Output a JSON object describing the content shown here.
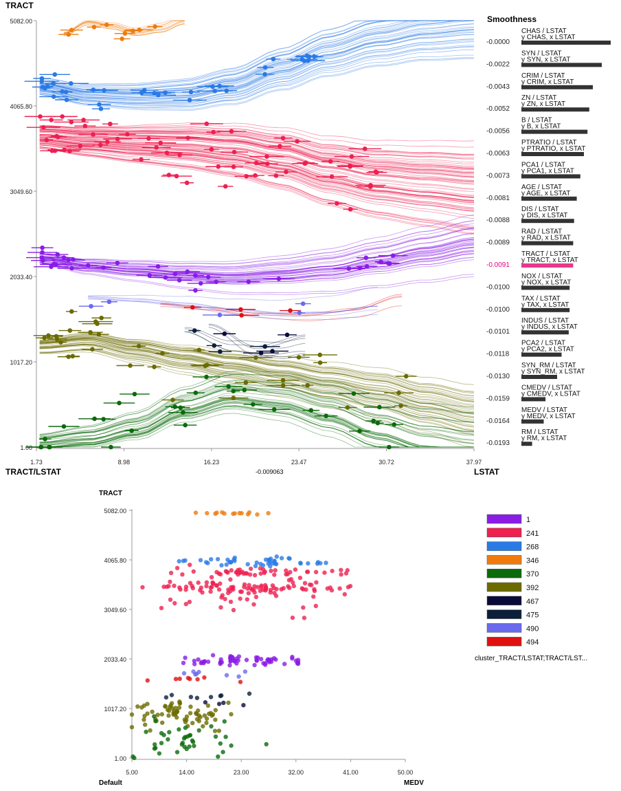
{
  "top": {
    "y_axis_title": "TRACT",
    "x_corner_left": "TRACT/LSTAT",
    "x_corner_right": "LSTAT",
    "x_center_value": "-0.009063",
    "y_ticks": [
      "5082.00",
      "4065.80",
      "3049.60",
      "2033.40",
      "1017.20",
      "1.00"
    ],
    "x_ticks": [
      "1.73",
      "8.98",
      "16.23",
      "23.47",
      "30.72",
      "37.97"
    ],
    "y_values": [
      5082,
      4065.8,
      3049.6,
      2033.4,
      1017.2,
      1
    ],
    "x_values": [
      1.73,
      8.98,
      16.23,
      23.47,
      30.72,
      37.97
    ]
  },
  "smoothness": {
    "title": "Smoothness",
    "highlight_color": "#e6007e",
    "items": [
      {
        "value": "-0.0000",
        "label1": "CHAS / LSTAT",
        "label2": "y CHAS, x LSTAT",
        "bar": 1.0,
        "highlight": false
      },
      {
        "value": "-0.0022",
        "label1": "SYN / LSTAT",
        "label2": "y SYN, x LSTAT",
        "bar": 0.9,
        "highlight": false
      },
      {
        "value": "-0.0043",
        "label1": "CRIM / LSTAT",
        "label2": "y CRIM, x LSTAT",
        "bar": 0.8,
        "highlight": false
      },
      {
        "value": "-0.0052",
        "label1": "ZN / LSTAT",
        "label2": "y ZN, x LSTAT",
        "bar": 0.76,
        "highlight": false
      },
      {
        "value": "-0.0056",
        "label1": "B / LSTAT",
        "label2": "y B, x LSTAT",
        "bar": 0.74,
        "highlight": false
      },
      {
        "value": "-0.0063",
        "label1": "PTRATIO / LSTAT",
        "label2": "y PTRATIO, x LSTAT",
        "bar": 0.7,
        "highlight": false
      },
      {
        "value": "-0.0073",
        "label1": "PCA1 / LSTAT",
        "label2": "y PCA1, x LSTAT",
        "bar": 0.66,
        "highlight": false
      },
      {
        "value": "-0.0081",
        "label1": "AGE / LSTAT",
        "label2": "y AGE, x LSTAT",
        "bar": 0.62,
        "highlight": false
      },
      {
        "value": "-0.0088",
        "label1": "DIS / LSTAT",
        "label2": "y DIS, x LSTAT",
        "bar": 0.59,
        "highlight": false
      },
      {
        "value": "-0.0089",
        "label1": "RAD / LSTAT",
        "label2": "y RAD, x LSTAT",
        "bar": 0.58,
        "highlight": false
      },
      {
        "value": "-0.0091",
        "label1": "TRACT / LSTAT",
        "label2": "y TRACT, x LSTAT",
        "bar": 0.58,
        "highlight": true
      },
      {
        "value": "-0.0100",
        "label1": "NOX / LSTAT",
        "label2": "y NOX, x LSTAT",
        "bar": 0.54,
        "highlight": false
      },
      {
        "value": "-0.0100",
        "label1": "TAX / LSTAT",
        "label2": "y TAX, x LSTAT",
        "bar": 0.54,
        "highlight": false
      },
      {
        "value": "-0.0101",
        "label1": "INDUS / LSTAT",
        "label2": "y INDUS, x LSTAT",
        "bar": 0.53,
        "highlight": false
      },
      {
        "value": "-0.0118",
        "label1": "PCA2 / LSTAT",
        "label2": "y PCA2, x LSTAT",
        "bar": 0.45,
        "highlight": false
      },
      {
        "value": "-0.0130",
        "label1": "SYN_RM / LSTAT",
        "label2": "y SYN_RM, x LSTAT",
        "bar": 0.4,
        "highlight": false
      },
      {
        "value": "-0.0159",
        "label1": "CMEDV / LSTAT",
        "label2": "y CMEDV, x LSTAT",
        "bar": 0.27,
        "highlight": false
      },
      {
        "value": "-0.0164",
        "label1": "MEDV / LSTAT",
        "label2": "y MEDV, x LSTAT",
        "bar": 0.25,
        "highlight": false
      },
      {
        "value": "-0.0193",
        "label1": "RM / LSTAT",
        "label2": "y RM, x LSTAT",
        "bar": 0.12,
        "highlight": false
      }
    ]
  },
  "bottom": {
    "y_axis_title": "TRACT",
    "x_corner_left": "Default",
    "x_corner_right": "MEDV",
    "y_ticks": [
      "5082.00",
      "4065.80",
      "3049.60",
      "2033.40",
      "1017.20",
      "1.00"
    ],
    "x_ticks": [
      "5.00",
      "14.00",
      "23.00",
      "32.00",
      "41.00",
      "50.00"
    ],
    "y_values": [
      5082,
      4065.8,
      3049.6,
      2033.4,
      1017.2,
      1
    ],
    "x_values": [
      5,
      14,
      23,
      32,
      41,
      50
    ]
  },
  "legend": {
    "title": "cluster_TRACT/LSTAT;TRACT/LST...",
    "items": [
      {
        "label": "1",
        "color": "#8a1ce6"
      },
      {
        "label": "241",
        "color": "#ee2050"
      },
      {
        "label": "268",
        "color": "#2a7ae6"
      },
      {
        "label": "346",
        "color": "#f07b0c"
      },
      {
        "label": "370",
        "color": "#0b6a0b"
      },
      {
        "label": "392",
        "color": "#6b6b00"
      },
      {
        "label": "467",
        "color": "#0a0a3a"
      },
      {
        "label": "475",
        "color": "#0b1f3a"
      },
      {
        "label": "490",
        "color": "#6a6aee"
      },
      {
        "label": "494",
        "color": "#e01010"
      }
    ]
  },
  "chart_data": [
    {
      "type": "line",
      "title": "",
      "xlabel": "LSTAT",
      "ylabel": "TRACT",
      "xlim": [
        1.73,
        37.97
      ],
      "ylim": [
        1,
        5082
      ],
      "series": [
        {
          "name": "346",
          "color": "#f07b0c",
          "x": [
            4,
            6,
            8,
            10,
            12,
            14
          ],
          "y": [
            4920,
            5050,
            5000,
            4920,
            4960,
            5060
          ]
        },
        {
          "name": "268",
          "color": "#2a7ae6",
          "x": [
            2,
            6,
            10,
            14,
            18,
            22,
            26,
            30,
            34,
            37.97
          ],
          "y": [
            4300,
            4200,
            4180,
            4200,
            4300,
            4500,
            4700,
            4850,
            4950,
            5000
          ]
        },
        {
          "name": "241",
          "color": "#ee2050",
          "x": [
            2,
            6,
            10,
            14,
            18,
            22,
            26,
            30,
            34,
            37.97
          ],
          "y": [
            3700,
            3650,
            3620,
            3600,
            3550,
            3450,
            3300,
            3200,
            3150,
            3100
          ]
        },
        {
          "name": "1",
          "color": "#8a1ce6",
          "x": [
            2,
            6,
            10,
            14,
            18,
            22,
            26,
            30,
            34,
            37.97
          ],
          "y": [
            2250,
            2150,
            2100,
            2050,
            2020,
            2050,
            2100,
            2200,
            2300,
            2400
          ]
        },
        {
          "name": "494",
          "color": "#e01010",
          "x": [
            12,
            16,
            20,
            24,
            28,
            32
          ],
          "y": [
            1700,
            1650,
            1580,
            1560,
            1620,
            1780
          ]
        },
        {
          "name": "490",
          "color": "#6a6aee",
          "x": [
            6,
            10,
            14,
            18,
            22,
            26,
            30
          ],
          "y": [
            1780,
            1760,
            1720,
            1660,
            1620,
            1640,
            1720
          ]
        },
        {
          "name": "475",
          "color": "#0b1f3a",
          "x": [
            14,
            18,
            22,
            24
          ],
          "y": [
            1400,
            1200,
            1150,
            1200
          ]
        },
        {
          "name": "467",
          "color": "#0a0a3a",
          "x": [
            16,
            20,
            24
          ],
          "y": [
            1450,
            1150,
            1250
          ]
        },
        {
          "name": "392",
          "color": "#6b6b00",
          "x": [
            2,
            6,
            10,
            14,
            18,
            22,
            26,
            30,
            34,
            37.97
          ],
          "y": [
            1200,
            1250,
            1150,
            1050,
            950,
            850,
            750,
            650,
            500,
            380
          ]
        },
        {
          "name": "370",
          "color": "#0b6a0b",
          "x": [
            2,
            6,
            10,
            14,
            18,
            22,
            26,
            30,
            34,
            37.97
          ],
          "y": [
            60,
            120,
            250,
            500,
            650,
            600,
            450,
            250,
            100,
            20
          ]
        }
      ]
    },
    {
      "type": "bar",
      "title": "Smoothness",
      "orientation": "horizontal",
      "categories": [
        "CHAS / LSTAT",
        "SYN / LSTAT",
        "CRIM / LSTAT",
        "ZN / LSTAT",
        "B / LSTAT",
        "PTRATIO / LSTAT",
        "PCA1 / LSTAT",
        "AGE / LSTAT",
        "DIS / LSTAT",
        "RAD / LSTAT",
        "TRACT / LSTAT",
        "NOX / LSTAT",
        "TAX / LSTAT",
        "INDUS / LSTAT",
        "PCA2 / LSTAT",
        "SYN_RM / LSTAT",
        "CMEDV / LSTAT",
        "MEDV / LSTAT",
        "RM / LSTAT"
      ],
      "values": [
        -0.0,
        -0.0022,
        -0.0043,
        -0.0052,
        -0.0056,
        -0.0063,
        -0.0073,
        -0.0081,
        -0.0088,
        -0.0089,
        -0.0091,
        -0.01,
        -0.01,
        -0.0101,
        -0.0118,
        -0.013,
        -0.0159,
        -0.0164,
        -0.0193
      ]
    },
    {
      "type": "scatter",
      "title": "",
      "xlabel": "MEDV",
      "ylabel": "TRACT",
      "xlim": [
        5,
        50
      ],
      "ylim": [
        1,
        5082
      ],
      "series": [
        {
          "name": "346",
          "color": "#f07b0c",
          "center": [
            22,
            5020
          ],
          "spread": [
            5,
            30
          ],
          "n": 14
        },
        {
          "name": "268",
          "color": "#2a7ae6",
          "center": [
            26,
            4020
          ],
          "spread": [
            10,
            80
          ],
          "n": 45
        },
        {
          "name": "241",
          "color": "#ee2050",
          "center": [
            24,
            3450
          ],
          "spread": [
            12,
            380
          ],
          "n": 160
        },
        {
          "name": "1",
          "color": "#8a1ce6",
          "center": [
            24,
            2000
          ],
          "spread": [
            9,
            80
          ],
          "n": 60
        },
        {
          "name": "494",
          "color": "#e01010",
          "center": [
            15,
            1600
          ],
          "spread": [
            6,
            60
          ],
          "n": 8
        },
        {
          "name": "490",
          "color": "#6a6aee",
          "center": [
            20,
            1720
          ],
          "spread": [
            6,
            50
          ],
          "n": 8
        },
        {
          "name": "475",
          "color": "#0b1f3a",
          "center": [
            18,
            1250
          ],
          "spread": [
            6,
            120
          ],
          "n": 8
        },
        {
          "name": "467",
          "color": "#0a0a3a",
          "center": [
            19,
            1100
          ],
          "spread": [
            3,
            60
          ],
          "n": 4
        },
        {
          "name": "392",
          "color": "#6b6b00",
          "center": [
            13,
            900
          ],
          "spread": [
            7,
            220
          ],
          "n": 70
        },
        {
          "name": "370",
          "color": "#0b6a0b",
          "center": [
            14,
            400
          ],
          "spread": [
            8,
            350
          ],
          "n": 40
        }
      ]
    }
  ]
}
